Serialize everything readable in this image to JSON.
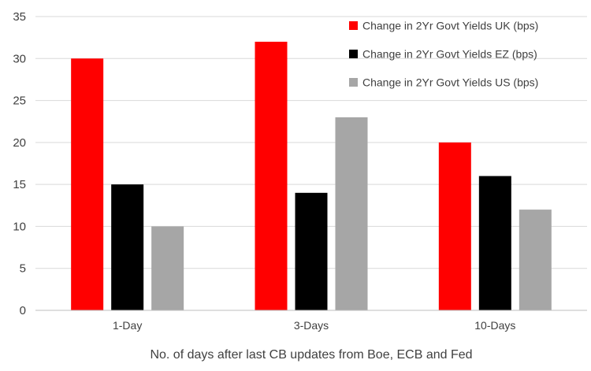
{
  "chart_data": {
    "type": "bar",
    "categories": [
      "1-Day",
      "3-Days",
      "10-Days"
    ],
    "series": [
      {
        "name": "Change in 2Yr Govt Yields UK (bps)",
        "values": [
          30,
          32,
          20
        ],
        "color": "#ff0000"
      },
      {
        "name": "Change in 2Yr Govt Yields EZ (bps)",
        "values": [
          15,
          14,
          16
        ],
        "color": "#000000"
      },
      {
        "name": "Change in 2Yr Govt Yields US (bps)",
        "values": [
          10,
          23,
          12
        ],
        "color": "#a6a6a6"
      }
    ],
    "title": "",
    "xlabel": "No. of days after last CB updates from Boe, ECB and Fed",
    "ylabel": "",
    "ylim": [
      0,
      35
    ],
    "yticks": [
      0,
      5,
      10,
      15,
      20,
      25,
      30,
      35
    ],
    "grid": true,
    "legend_position": "top-right",
    "colors": {
      "grid": "#d9d9d9",
      "axis": "#bfbfbf",
      "text": "#404040"
    }
  }
}
